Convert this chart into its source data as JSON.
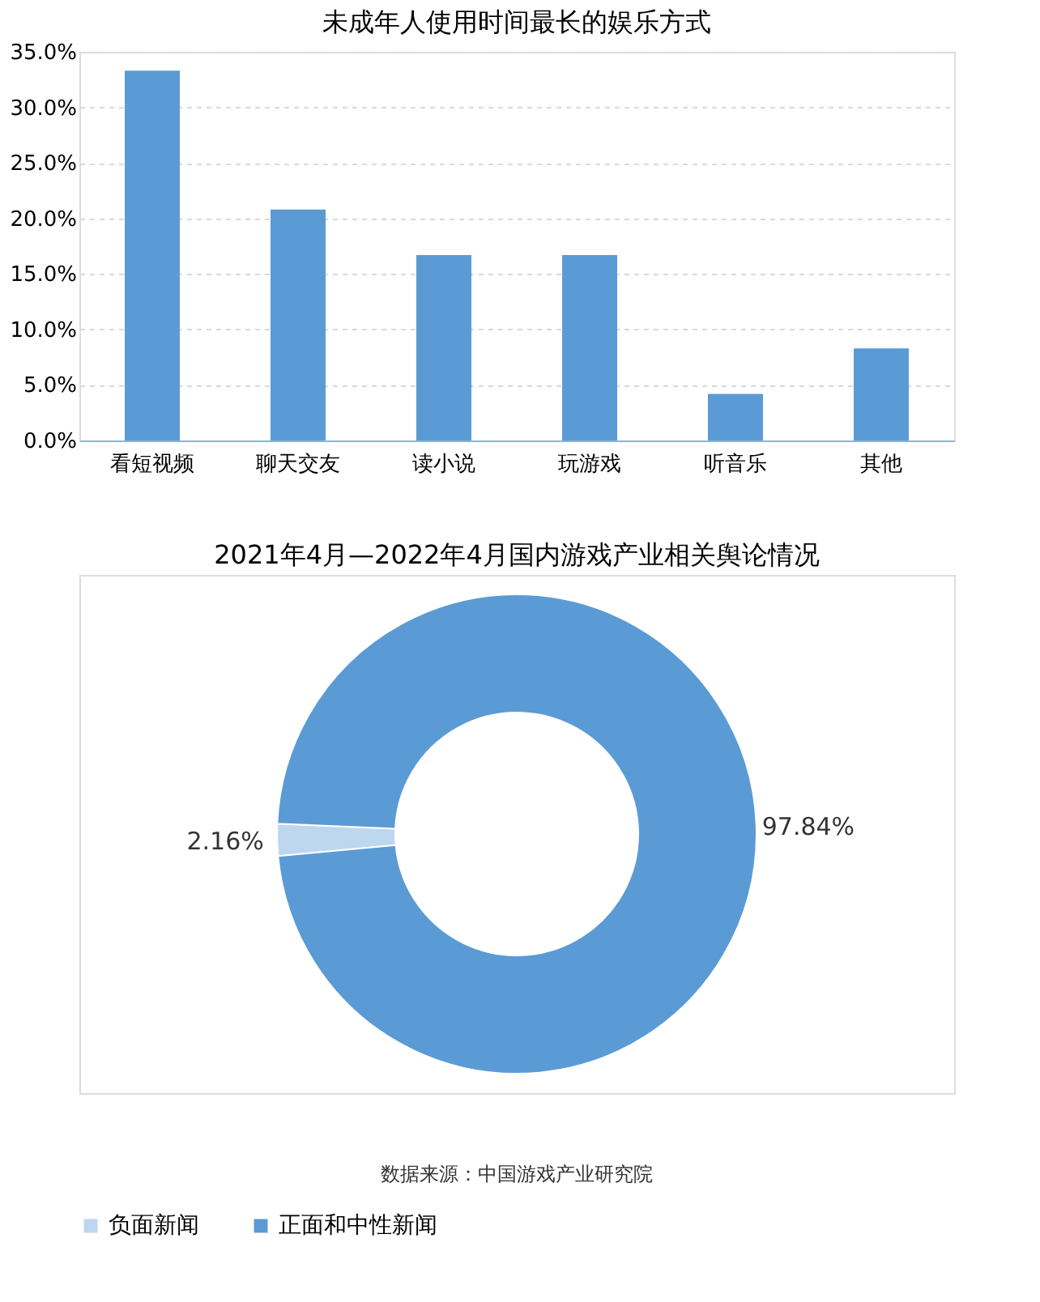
{
  "chart_data": [
    {
      "type": "bar",
      "title": "未成年人使用时间最长的娱乐方式",
      "categories": [
        "看短视频",
        "聊天交友",
        "读小说",
        "玩游戏",
        "听音乐",
        "其他"
      ],
      "values": [
        33.3,
        20.8,
        16.7,
        16.7,
        4.2,
        8.3
      ],
      "color": "#5b9bd5",
      "ylim": [
        0,
        35
      ],
      "yticks": [
        {
          "value": 0,
          "label": "0.0%"
        },
        {
          "value": 5,
          "label": "5.0%"
        },
        {
          "value": 10,
          "label": "10.0%"
        },
        {
          "value": 15,
          "label": "15.0%"
        },
        {
          "value": 20,
          "label": "20.0%"
        },
        {
          "value": 25,
          "label": "25.0%"
        },
        {
          "value": 30,
          "label": "30.0%"
        },
        {
          "value": 35,
          "label": "35.0%"
        }
      ],
      "grid": "y"
    },
    {
      "type": "donut",
      "title": "2021年4月—2022年4月国内游戏产业相关舆论情况",
      "categories": [
        "负面新闻",
        "正面和中性新闻"
      ],
      "values": [
        2.16,
        97.84
      ],
      "colors": [
        "#bdd7ee",
        "#5b9bd5"
      ],
      "value_labels": [
        "2.16%",
        "97.84%"
      ],
      "legend": "bottom",
      "annotations": [
        "数据来源：中国游戏产业研究院"
      ]
    }
  ]
}
